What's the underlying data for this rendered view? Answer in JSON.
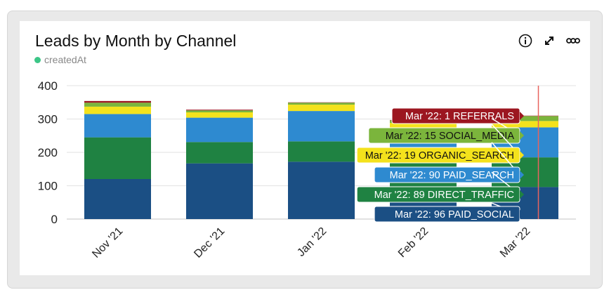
{
  "header": {
    "title": "Leads by Month by Channel",
    "subtitle": "createdAt"
  },
  "icons": [
    "info-icon",
    "expand-icon",
    "more-icon"
  ],
  "chart_data": {
    "type": "bar",
    "stacked": true,
    "title": "Leads by Month by Channel",
    "categories": [
      "Nov '21",
      "Dec '21",
      "Jan '22",
      "Feb '22",
      "Mar '22"
    ],
    "ylim": [
      0,
      400
    ],
    "yticks": [
      "0",
      "100",
      "200",
      "300",
      "400"
    ],
    "grid": true,
    "series": [
      {
        "name": "PAID_SOCIAL",
        "color": "#1b4f84",
        "values": [
          120,
          167,
          172,
          95,
          96
        ]
      },
      {
        "name": "DIRECT_TRAFFIC",
        "color": "#1f8242",
        "values": [
          125,
          64,
          61,
          88,
          89
        ]
      },
      {
        "name": "PAID_SEARCH",
        "color": "#2e8ad0",
        "values": [
          70,
          73,
          91,
          91,
          90
        ]
      },
      {
        "name": "ORGANIC_SEARCH",
        "color": "#f4e21c",
        "values": [
          22,
          16,
          19,
          14,
          19
        ]
      },
      {
        "name": "SOCIAL_MEDIA",
        "color": "#7bb53c",
        "values": [
          12,
          6,
          6,
          8,
          15
        ]
      },
      {
        "name": "REFERRALS",
        "color": "#9c1620",
        "values": [
          5,
          2,
          1,
          1,
          1
        ]
      }
    ],
    "hover_category": "Mar '22",
    "tooltips": [
      {
        "text": "Mar '22: 1 REFERRALS",
        "color": "#9c1620",
        "text_color": "#ffffff"
      },
      {
        "text": "Mar '22: 15 SOCIAL_MEDIA",
        "color": "#7bb53c",
        "text_color": "#111111"
      },
      {
        "text": "Mar '22: 19 ORGANIC_SEARCH",
        "color": "#f4e21c",
        "text_color": "#111111"
      },
      {
        "text": "Mar '22: 90 PAID_SEARCH",
        "color": "#2e8ad0",
        "text_color": "#ffffff"
      },
      {
        "text": "Mar '22: 89 DIRECT_TRAFFIC",
        "color": "#1f8242",
        "text_color": "#ffffff"
      },
      {
        "text": "Mar '22: 96 PAID_SOCIAL",
        "color": "#1b4f84",
        "text_color": "#ffffff"
      }
    ]
  }
}
